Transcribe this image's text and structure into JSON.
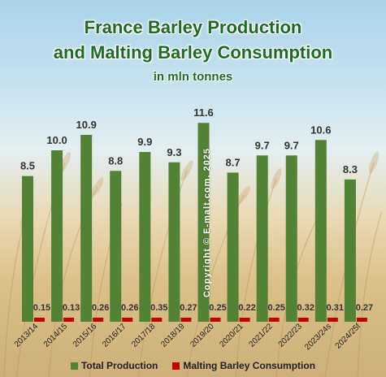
{
  "title_line1": "France Barley Production",
  "title_line2": "and Malting Barley Consumption",
  "subtitle": "in mln tonnes",
  "copyright": "Copyright © E-malt.com, 2025",
  "colors": {
    "production": "#538135",
    "consumption": "#c00000",
    "title": "#1e6b28"
  },
  "chart_data": {
    "type": "bar",
    "title": "France Barley Production and Malting Barley Consumption",
    "subtitle": "in mln tonnes",
    "categories": [
      "2013/14",
      "2014/15",
      "2015/16",
      "2016/17",
      "2017/18",
      "2018/19",
      "2019/20",
      "2020/21",
      "2021/22",
      "2022/23",
      "2023/24s",
      "2024/25f"
    ],
    "series": [
      {
        "name": "Total Production",
        "values": [
          8.5,
          10.0,
          10.9,
          8.8,
          9.9,
          9.3,
          11.6,
          8.7,
          9.7,
          9.7,
          10.6,
          8.3
        ],
        "labels": [
          "8.5",
          "10.0",
          "10.9",
          "8.8",
          "9.9",
          "9.3",
          "11.6",
          "8.7",
          "9.7",
          "9.7",
          "10.6",
          "8.3"
        ]
      },
      {
        "name": "Malting Barley Consumption",
        "values": [
          0.15,
          0.13,
          0.26,
          0.26,
          0.35,
          0.27,
          0.25,
          0.22,
          0.25,
          0.32,
          0.31,
          0.27
        ],
        "labels": [
          "0.15",
          "0.13",
          "0.26",
          "0.26",
          "0.35",
          "0.27",
          "0.25",
          "0.22",
          "0.25",
          "0.32",
          "0.31",
          "0.27"
        ]
      }
    ],
    "legend_position": "bottom"
  }
}
